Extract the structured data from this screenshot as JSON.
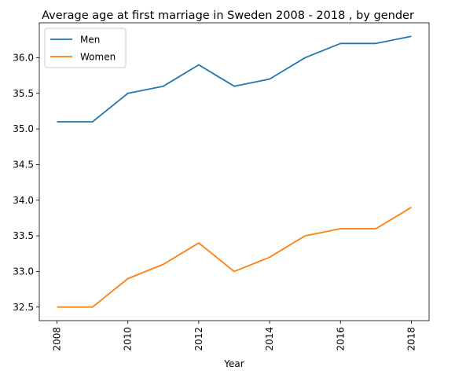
{
  "chart_data": {
    "type": "line",
    "title": "Average age at first marriage in Sweden 2008 - 2018 , by gender",
    "xlabel": "Year",
    "ylabel": "",
    "x": [
      2008,
      2009,
      2010,
      2011,
      2012,
      2013,
      2014,
      2015,
      2016,
      2017,
      2018
    ],
    "series": [
      {
        "name": "Men",
        "color": "#1f77b4",
        "values": [
          35.1,
          35.1,
          35.5,
          35.6,
          35.9,
          35.6,
          35.7,
          36.0,
          36.2,
          36.2,
          36.3
        ]
      },
      {
        "name": "Women",
        "color": "#ff7f0e",
        "values": [
          32.5,
          32.5,
          32.9,
          33.1,
          33.4,
          33.0,
          33.2,
          33.5,
          33.6,
          33.6,
          33.9
        ]
      }
    ],
    "xticks": [
      "2008",
      "2010",
      "2012",
      "2014",
      "2016",
      "2018"
    ],
    "yticks": [
      "32.5",
      "33.0",
      "33.5",
      "34.0",
      "34.5",
      "35.0",
      "35.5",
      "36.0"
    ],
    "xlim": [
      2007.5,
      2018.5
    ],
    "ylim": [
      32.31,
      36.49
    ],
    "legend_position": "upper-left",
    "grid": false
  }
}
